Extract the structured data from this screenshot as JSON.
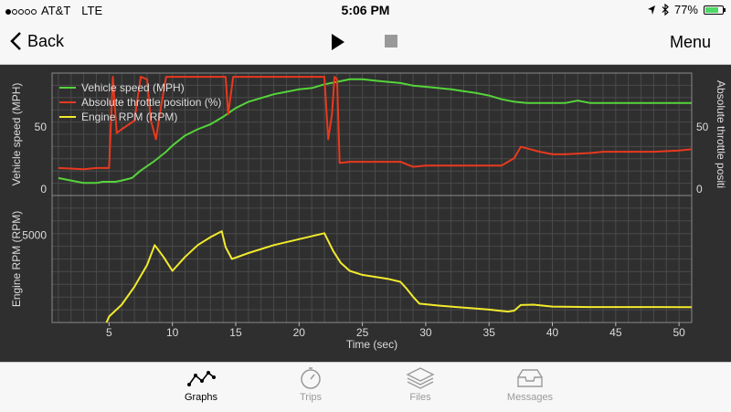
{
  "status": {
    "carrier": "AT&T",
    "network": "LTE",
    "time": "5:06 PM",
    "battery": "77%",
    "battery_level": 0.77
  },
  "nav": {
    "back_label": "Back",
    "menu_label": "Menu"
  },
  "tabs": [
    {
      "label": "Graphs",
      "icon": "graph-icon",
      "active": true
    },
    {
      "label": "Trips",
      "icon": "stopwatch-icon",
      "active": false
    },
    {
      "label": "Files",
      "icon": "layers-icon",
      "active": false
    },
    {
      "label": "Messages",
      "icon": "inbox-icon",
      "active": false
    }
  ],
  "colors": {
    "speed": "#55d43a",
    "throttle": "#e8391e",
    "rpm": "#f2ea2d",
    "background": "#2f2f2f"
  },
  "chart_data": [
    {
      "type": "line",
      "x_axis": {
        "label": "Time (sec)",
        "ticks": [
          5,
          10,
          15,
          20,
          25,
          30,
          35,
          40,
          45,
          50
        ],
        "range": [
          0.5,
          51
        ]
      },
      "left_axis": {
        "label": "Vehicle speed (MPH)",
        "ticks": [
          0,
          50
        ],
        "range": [
          -5,
          93
        ]
      },
      "right_axis": {
        "label": "Absolute throttle positi",
        "ticks": [
          0,
          50
        ],
        "range": [
          -5,
          93
        ]
      },
      "legend": {
        "position": "top-left"
      },
      "grid": true,
      "series": [
        {
          "name": "Vehicle speed (MPH)",
          "axis": "left",
          "points": [
            [
              1,
              9
            ],
            [
              2,
              7
            ],
            [
              3,
              5
            ],
            [
              4,
              5
            ],
            [
              4.5,
              6
            ],
            [
              5,
              6
            ],
            [
              5.5,
              6
            ],
            [
              6,
              7
            ],
            [
              6.8,
              9
            ],
            [
              7.5,
              15
            ],
            [
              8.5,
              22
            ],
            [
              9.5,
              30
            ],
            [
              10,
              35
            ],
            [
              11,
              43
            ],
            [
              12,
              48
            ],
            [
              13,
              52
            ],
            [
              14,
              58
            ],
            [
              15,
              65
            ],
            [
              16,
              70
            ],
            [
              17,
              73
            ],
            [
              18,
              76
            ],
            [
              19,
              78
            ],
            [
              20,
              80
            ],
            [
              21,
              81
            ],
            [
              22,
              84
            ],
            [
              23,
              86
            ],
            [
              24,
              88
            ],
            [
              25,
              88
            ],
            [
              26,
              87
            ],
            [
              27,
              86
            ],
            [
              28,
              85
            ],
            [
              29,
              83
            ],
            [
              30,
              82
            ],
            [
              32,
              80
            ],
            [
              34,
              77
            ],
            [
              35,
              75
            ],
            [
              36,
              72
            ],
            [
              37,
              70
            ],
            [
              38,
              69
            ],
            [
              40,
              69
            ],
            [
              41,
              69
            ],
            [
              42,
              71
            ],
            [
              43,
              69
            ],
            [
              45,
              69
            ],
            [
              46,
              69
            ],
            [
              47,
              69
            ],
            [
              50,
              69
            ],
            [
              51,
              69
            ]
          ]
        },
        {
          "name": "Absolute throttle position (%)",
          "axis": "right",
          "points": [
            [
              1,
              17
            ],
            [
              3,
              16
            ],
            [
              4,
              17
            ],
            [
              5,
              17
            ],
            [
              5.3,
              90
            ],
            [
              5.6,
              45
            ],
            [
              6,
              48
            ],
            [
              7,
              55
            ],
            [
              7.5,
              90
            ],
            [
              8,
              88
            ],
            [
              8.3,
              55
            ],
            [
              8.7,
              40
            ],
            [
              9,
              60
            ],
            [
              9.5,
              90
            ],
            [
              14.2,
              90
            ],
            [
              14.4,
              60
            ],
            [
              14.8,
              90
            ],
            [
              22,
              90
            ],
            [
              22.3,
              40
            ],
            [
              22.6,
              60
            ],
            [
              22.8,
              90
            ],
            [
              23,
              88
            ],
            [
              23.2,
              21
            ],
            [
              24,
              22
            ],
            [
              25,
              22
            ],
            [
              26,
              22
            ],
            [
              28,
              22
            ],
            [
              29,
              18
            ],
            [
              30,
              19
            ],
            [
              33,
              19
            ],
            [
              36,
              19
            ],
            [
              37,
              25
            ],
            [
              37.5,
              34
            ],
            [
              39,
              30
            ],
            [
              40,
              28
            ],
            [
              41,
              28
            ],
            [
              43,
              29
            ],
            [
              44,
              30
            ],
            [
              46,
              30
            ],
            [
              48,
              30
            ],
            [
              50,
              31
            ],
            [
              51,
              32
            ]
          ]
        }
      ]
    },
    {
      "type": "line",
      "x_axis": {
        "label": "Time (sec)",
        "ticks": [
          5,
          10,
          15,
          20,
          25,
          30,
          35,
          40,
          45,
          50
        ],
        "range": [
          0.5,
          51
        ]
      },
      "left_axis": {
        "label": "Engine RPM (RPM)",
        "ticks": [
          5000
        ],
        "range": [
          600,
          7000
        ]
      },
      "grid": true,
      "series": [
        {
          "name": "Engine RPM (RPM)",
          "axis": "left",
          "points": [
            [
              4.8,
              600
            ],
            [
              5,
              900
            ],
            [
              6,
              1500
            ],
            [
              7,
              2400
            ],
            [
              8,
              3500
            ],
            [
              8.6,
              4500
            ],
            [
              9.3,
              3900
            ],
            [
              10,
              3200
            ],
            [
              11,
              3900
            ],
            [
              12,
              4500
            ],
            [
              13,
              4900
            ],
            [
              13.9,
              5200
            ],
            [
              14.2,
              4400
            ],
            [
              14.7,
              3800
            ],
            [
              16,
              4100
            ],
            [
              18,
              4500
            ],
            [
              20,
              4800
            ],
            [
              22,
              5100
            ],
            [
              22.7,
              4200
            ],
            [
              23.3,
              3600
            ],
            [
              24,
              3200
            ],
            [
              25,
              3000
            ],
            [
              27,
              2800
            ],
            [
              28,
              2650
            ],
            [
              28.5,
              2300
            ],
            [
              29,
              1900
            ],
            [
              29.5,
              1550
            ],
            [
              31,
              1450
            ],
            [
              35,
              1250
            ],
            [
              36.5,
              1150
            ],
            [
              37,
              1200
            ],
            [
              37.5,
              1480
            ],
            [
              38.5,
              1500
            ],
            [
              40,
              1400
            ],
            [
              43,
              1380
            ],
            [
              46,
              1380
            ],
            [
              48,
              1380
            ],
            [
              51,
              1370
            ]
          ]
        }
      ]
    }
  ]
}
